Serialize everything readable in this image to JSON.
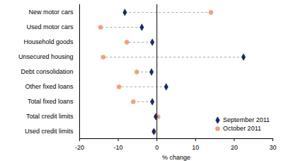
{
  "chart_data": {
    "type": "dot",
    "orientation": "horizontal",
    "categories": [
      "New motor cars",
      "Used motor cars",
      "Household goods",
      "Unsecured housing",
      "Debt consolidation",
      "Other fixed loans",
      "Total fixed loans",
      "Total credit limits",
      "Used credit limits"
    ],
    "series": [
      {
        "name": "September 2011",
        "color": "#1b2a66",
        "marker": "diamond",
        "values": [
          -8.3,
          -3.9,
          -1.2,
          22.4,
          -1.4,
          2.4,
          -1.2,
          -0.3,
          -0.8
        ]
      },
      {
        "name": "October 2011",
        "color": "#f0a07e",
        "marker": "circle",
        "values": [
          14.0,
          -14.6,
          -7.8,
          -13.9,
          -5.2,
          -9.8,
          -6.1,
          0.3,
          -0.6
        ]
      }
    ],
    "x_label": "% change",
    "xlim": [
      -20,
      30
    ],
    "xticks": [
      -20,
      -10,
      0,
      10,
      20,
      30
    ],
    "grid": false,
    "legend": "lower right"
  }
}
